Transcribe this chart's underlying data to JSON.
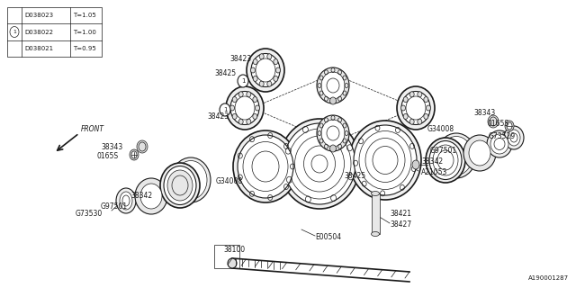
{
  "bg_color": "#ffffff",
  "line_color": "#1a1a1a",
  "fig_width": 6.4,
  "fig_height": 3.2,
  "dpi": 100,
  "watermark": "A190001287",
  "legend_rows": [
    {
      "part": "D038021",
      "t": "T=0.95"
    },
    {
      "part": "D038022",
      "t": "T=1.00"
    },
    {
      "part": "D038023",
      "t": "T=1.05"
    }
  ]
}
